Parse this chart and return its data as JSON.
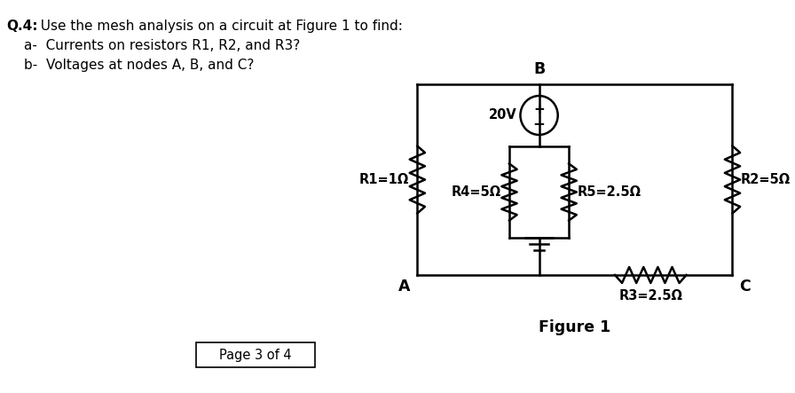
{
  "title_bold": "Q.4:",
  "title_rest": "  Use the mesh analysis on a circuit at Figure 1 to find:",
  "title_line2": "a-  Currents on resistors R1, R2, and R3?",
  "title_line3": "b-  Voltages at nodes A, B, and C?",
  "figure_label": "Figure 1",
  "page_label": "Page 3 of 4",
  "node_A": "A",
  "node_B": "B",
  "node_C": "C",
  "R1_label": "R1=1Ω",
  "R2_label": "R2=5Ω",
  "R3_label": "R3=2.5Ω",
  "R4_label": "R4=5Ω",
  "R5_label": "R5=2.5Ω",
  "V_label": "20V",
  "bg_color": "#ffffff",
  "line_color": "#000000",
  "font_color": "#000000",
  "font_size": 10.5,
  "title_font_size": 11
}
